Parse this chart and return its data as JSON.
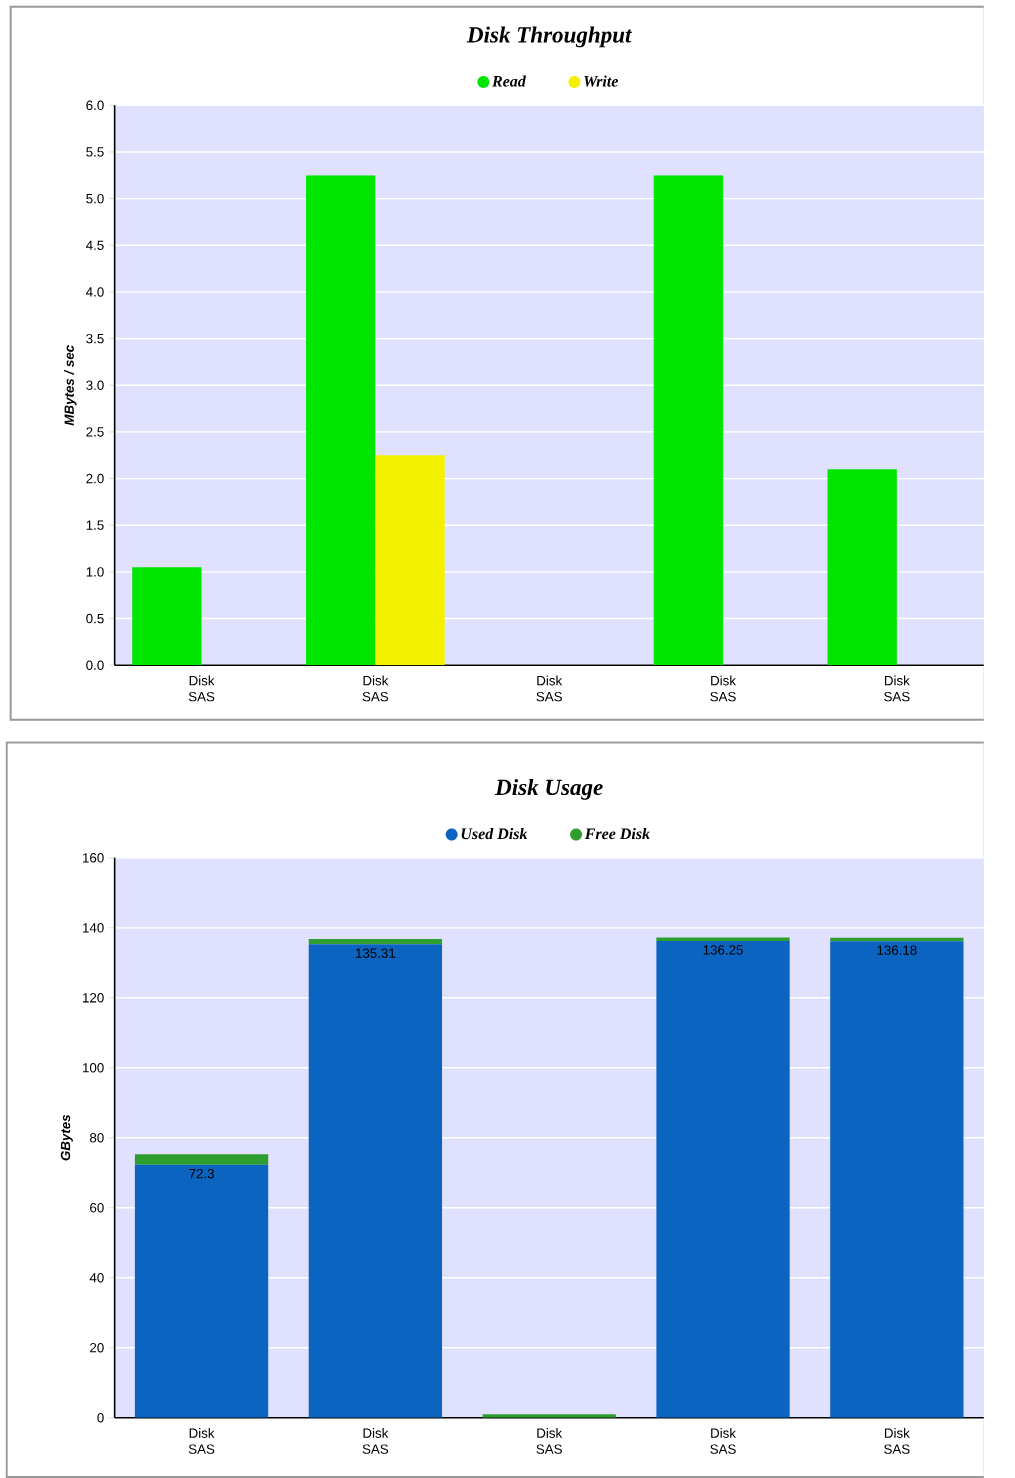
{
  "chart_data": [
    {
      "type": "bar",
      "title": "Disk Throughput",
      "ylabel": "MBytes / sec",
      "categories": [
        "Disk SAS",
        "Disk SAS",
        "Disk SAS",
        "Disk SAS",
        "Disk SAS"
      ],
      "series": [
        {
          "name": "Read",
          "color": "#00e600",
          "values": [
            1.05,
            5.25,
            0.0,
            5.25,
            2.1
          ]
        },
        {
          "name": "Write",
          "color": "#f2f200",
          "values": [
            0.0,
            2.25,
            0.0,
            0.0,
            0.0
          ]
        }
      ],
      "ylim": [
        0,
        6
      ],
      "yticks": [
        {
          "value": 0,
          "label": "0.0"
        },
        {
          "value": 0.5,
          "label": "0.5"
        },
        {
          "value": 1,
          "label": "1.0"
        },
        {
          "value": 1.5,
          "label": "1.5"
        },
        {
          "value": 2,
          "label": "2.0"
        },
        {
          "value": 2.5,
          "label": "2.5"
        },
        {
          "value": 3,
          "label": "3.0"
        },
        {
          "value": 3.5,
          "label": "3.5"
        },
        {
          "value": 4,
          "label": "4.0"
        },
        {
          "value": 4.5,
          "label": "4.5"
        },
        {
          "value": 5,
          "label": "5.0"
        },
        {
          "value": 5.5,
          "label": "5.5"
        },
        {
          "value": 6,
          "label": "6.0"
        }
      ],
      "grid": "y",
      "legend": "top"
    },
    {
      "type": "bar",
      "title": "Disk Usage",
      "ylabel": "GBytes",
      "categories": [
        "Disk SAS",
        "Disk SAS",
        "Disk SAS",
        "Disk SAS",
        "Disk SAS"
      ],
      "stacked": true,
      "series": [
        {
          "name": "Used Disk",
          "color": "#0a64c0",
          "values": [
            72.3,
            135.31,
            0,
            136.25,
            136.18
          ],
          "value_labels": [
            "72.3",
            "135.31",
            null,
            "136.25",
            "136.18"
          ]
        },
        {
          "name": "Free Disk",
          "color": "#2e9e2e",
          "values": [
            3,
            1.5,
            1,
            1,
            1
          ]
        }
      ],
      "ylim": [
        0,
        160
      ],
      "yticks": [
        0,
        20,
        40,
        60,
        80,
        100,
        120,
        140,
        160
      ],
      "grid": "y",
      "legend": "top"
    }
  ]
}
